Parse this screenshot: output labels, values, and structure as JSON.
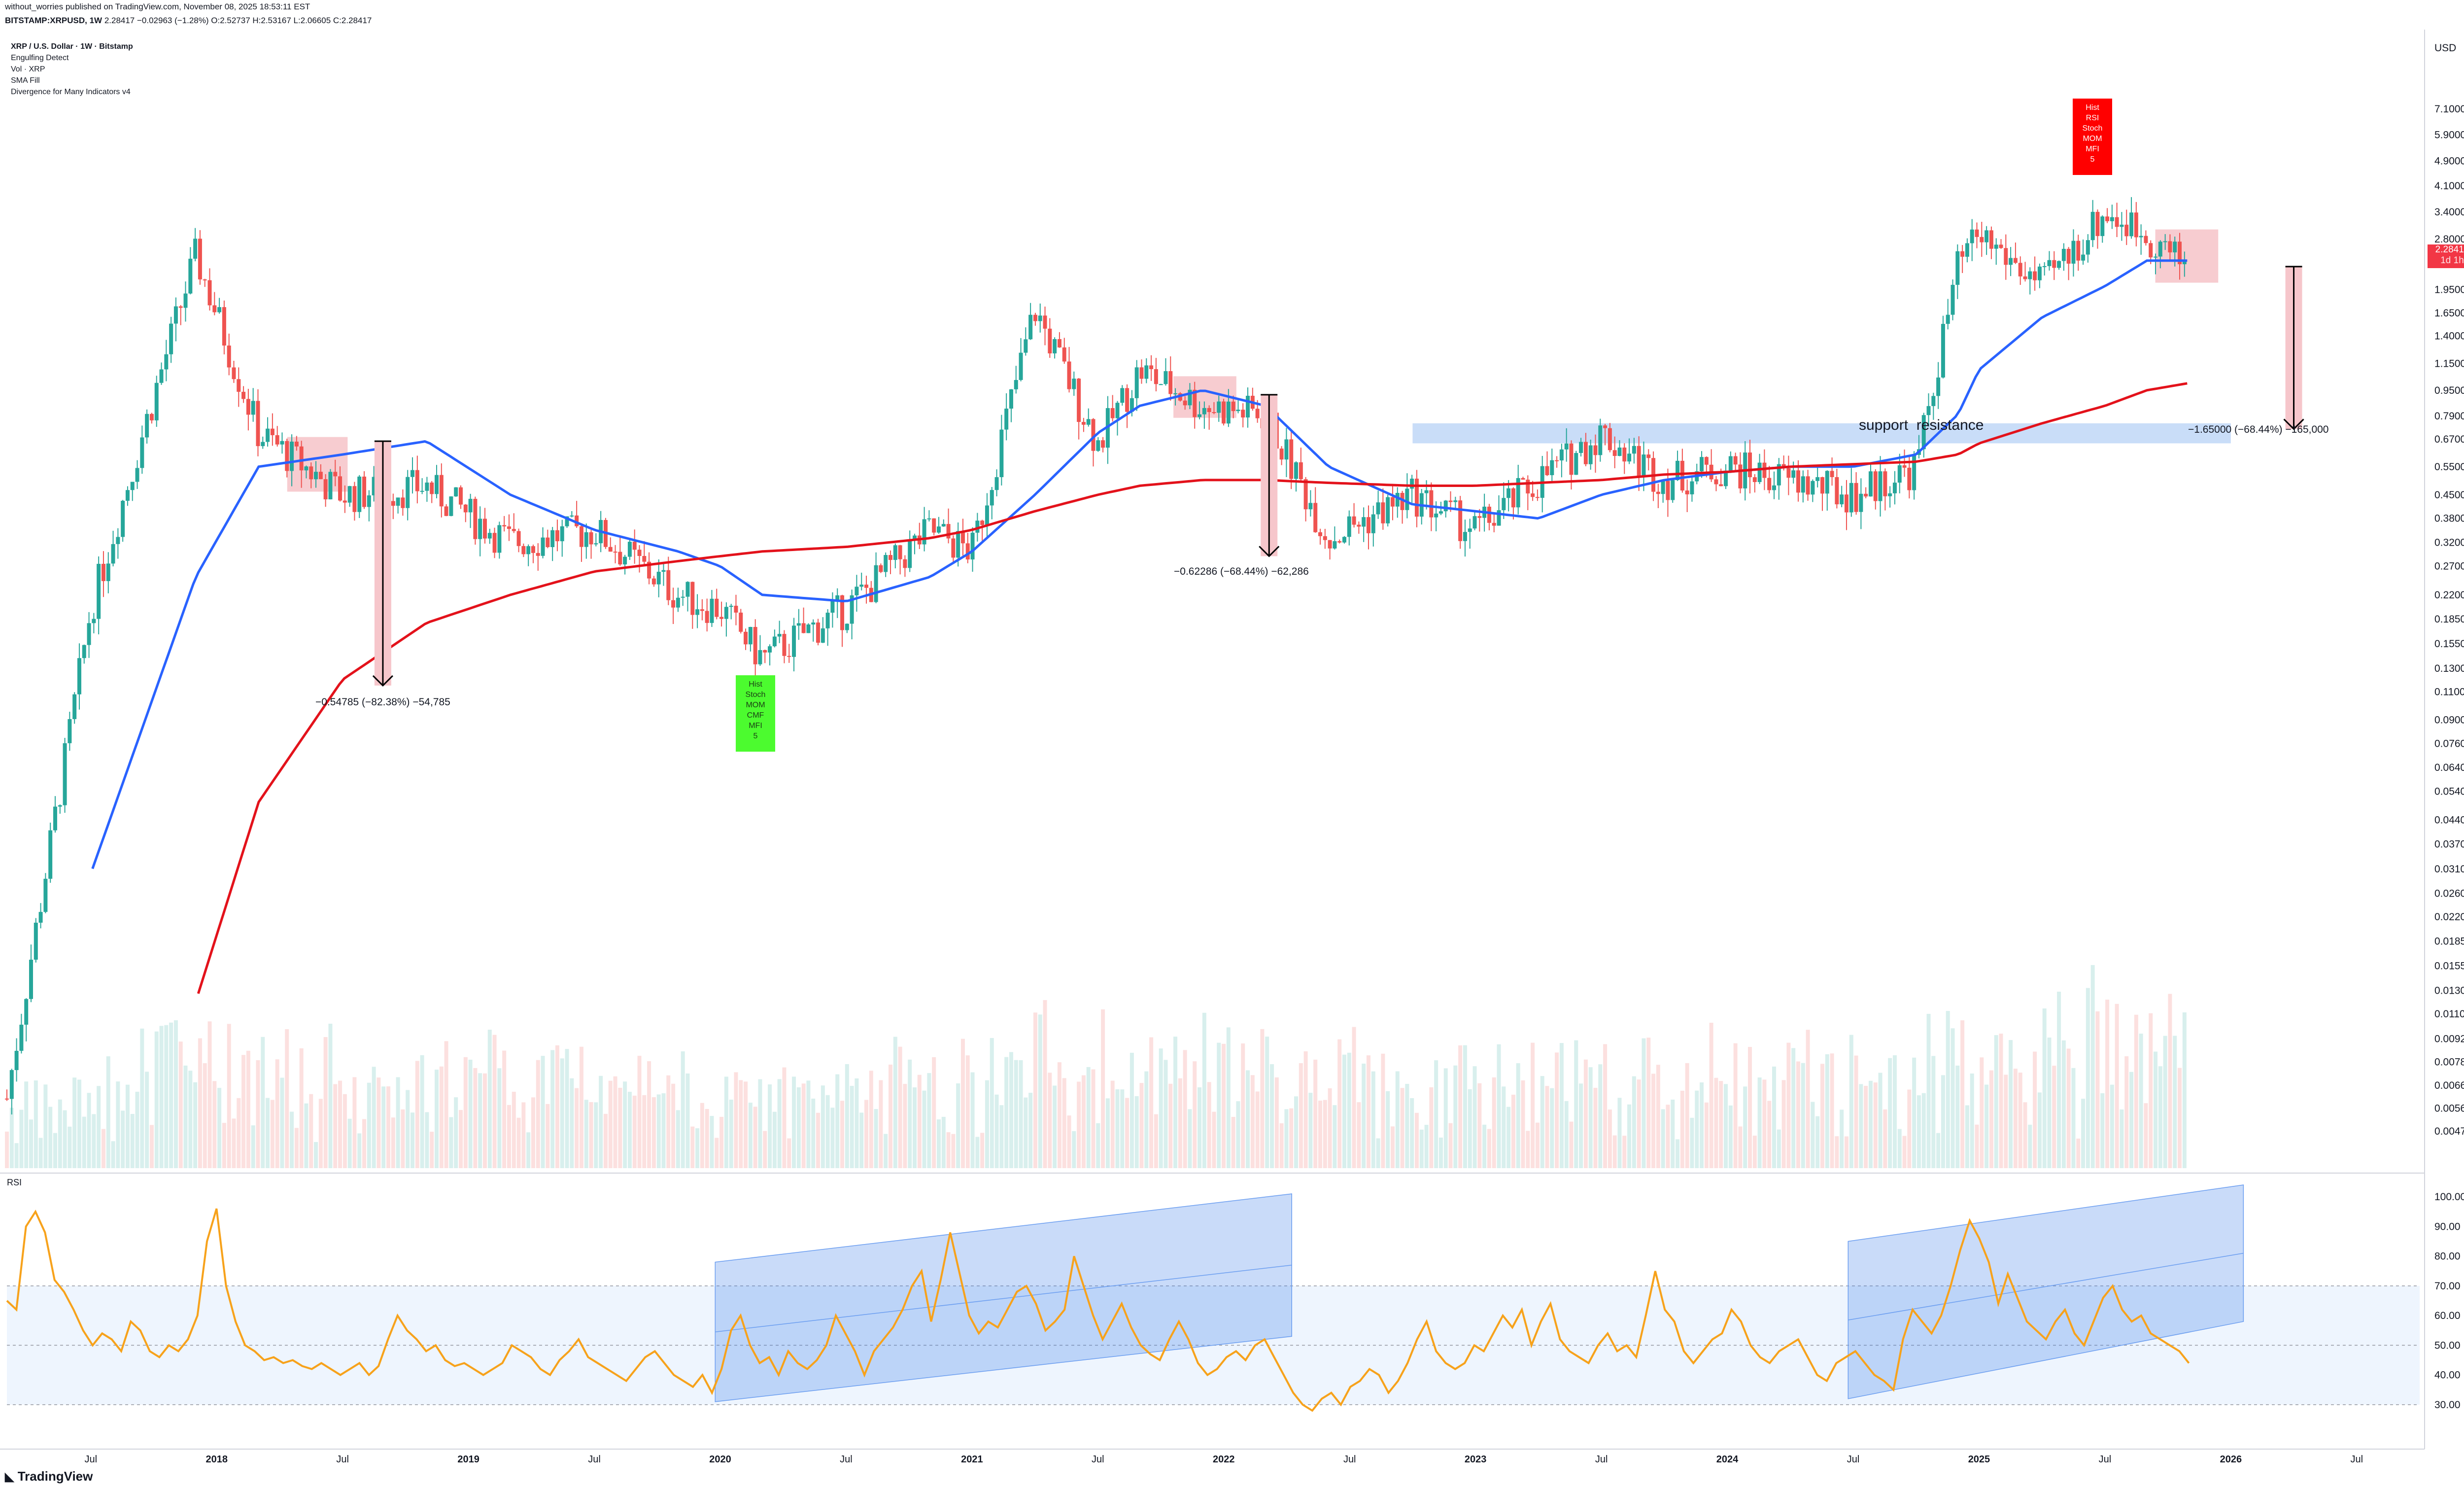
{
  "header": {
    "publish_line": "without_worries published on TradingView.com, November 08, 2025 18:53:11 EST",
    "symbol_line": "BITSTAMP:XRPUSD, 1W",
    "ohlc": "2.28417 −0.02963 (−1.28%) O:2.52737 H:2.53167 L:2.06605 C:2.28417"
  },
  "legend": {
    "title": "XRP / U.S. Dollar · 1W · Bitstamp",
    "indicators": [
      "Engulfing Detect",
      "Vol · XRP",
      "SMA Fill",
      "Divergence for Many Indicators v4"
    ]
  },
  "price_axis": {
    "unit": "USD",
    "ticks": [
      "7.10000",
      "5.90000",
      "4.90000",
      "4.10000",
      "3.40000",
      "2.80000",
      "1.95000",
      "1.65000",
      "1.40000",
      "1.15000",
      "0.95000",
      "0.79000",
      "0.67000",
      "0.55000",
      "0.45000",
      "0.38000",
      "0.32000",
      "0.27000",
      "0.22000",
      "0.18500",
      "0.15500",
      "0.13000",
      "0.11000",
      "0.09000",
      "0.07600",
      "0.06400",
      "0.05400",
      "0.04400",
      "0.03700",
      "0.03100",
      "0.02600",
      "0.02200",
      "0.01850",
      "0.01550",
      "0.01300",
      "0.01100",
      "0.00920",
      "0.00780",
      "0.00660",
      "0.00560",
      "0.00475"
    ],
    "current_price": "2.28417",
    "current_countdown": "1d 1h"
  },
  "time_axis": {
    "labels": [
      {
        "text": "Jul",
        "year": false
      },
      {
        "text": "2018",
        "year": true
      },
      {
        "text": "Jul",
        "year": false
      },
      {
        "text": "2019",
        "year": true
      },
      {
        "text": "Jul",
        "year": false
      },
      {
        "text": "2020",
        "year": true
      },
      {
        "text": "Jul",
        "year": false
      },
      {
        "text": "2021",
        "year": true
      },
      {
        "text": "Jul",
        "year": false
      },
      {
        "text": "2022",
        "year": true
      },
      {
        "text": "Jul",
        "year": false
      },
      {
        "text": "2023",
        "year": true
      },
      {
        "text": "Jul",
        "year": false
      },
      {
        "text": "2024",
        "year": true
      },
      {
        "text": "Jul",
        "year": false
      },
      {
        "text": "2025",
        "year": true
      },
      {
        "text": "Jul",
        "year": false
      },
      {
        "text": "2026",
        "year": true
      },
      {
        "text": "Jul",
        "year": false
      }
    ]
  },
  "rsi_panel": {
    "label": "RSI",
    "ticks": [
      "100.00",
      "90.00",
      "80.00",
      "70.00",
      "60.00",
      "50.00",
      "40.00",
      "30.00"
    ]
  },
  "annotations": {
    "drop1": "−0.54785 (−82.38%) −54,785",
    "drop2": "−0.62286 (−68.44%) −62,286",
    "drop3": "−1.65000 (−68.44%) −165,000",
    "support_resistance": "support  resistance",
    "bull_div": [
      "Hist",
      "Stoch",
      "MOM",
      "CMF",
      "MFI",
      "5"
    ],
    "bear_div": [
      "Hist",
      "RSI",
      "Stoch",
      "MOM",
      "MFI",
      "5"
    ]
  },
  "colors": {
    "bull_candle": "#26a69a",
    "bear_candle": "#ef5350",
    "sma_fast": "#2962ff",
    "sma_slow": "#e3121b",
    "rsi": "#f7a21b",
    "box_red": "#f6c6cb",
    "box_blue": "#bcd4f6",
    "bull_label": "#4cfb2f",
    "bear_label": "#ff0000"
  },
  "chart_data": {
    "type": "line",
    "title": "XRP / U.S. Dollar · 1W · Bitstamp",
    "y_scale": "log",
    "ylabel": "USD",
    "ylim": [
      0.0042,
      8.5
    ],
    "x": [
      "2017-03",
      "2017-07",
      "2017-12",
      "2018-03",
      "2018-07",
      "2018-11",
      "2019-03",
      "2019-07",
      "2019-11",
      "2020-01",
      "2020-03",
      "2020-07",
      "2020-11",
      "2021-01",
      "2021-04",
      "2021-07",
      "2021-09",
      "2021-12",
      "2022-03",
      "2022-06",
      "2022-10",
      "2023-01",
      "2023-04",
      "2023-07",
      "2023-10",
      "2024-01",
      "2024-04",
      "2024-07",
      "2024-10",
      "2024-12",
      "2025-01",
      "2025-04",
      "2025-07",
      "2025-09",
      "2025-11"
    ],
    "series": [
      {
        "values": [
          0.006,
          0.2,
          2.5,
          0.7,
          0.45,
          0.48,
          0.32,
          0.35,
          0.22,
          0.2,
          0.14,
          0.2,
          0.35,
          0.3,
          1.7,
          0.65,
          1.1,
          0.85,
          0.8,
          0.33,
          0.45,
          0.35,
          0.5,
          0.7,
          0.5,
          0.55,
          0.5,
          0.45,
          0.55,
          2.3,
          2.9,
          2.0,
          3.4,
          2.9,
          2.28
        ]
      },
      {
        "values": [
          null,
          0.03,
          0.25,
          0.55,
          0.6,
          0.66,
          0.45,
          0.35,
          0.3,
          0.27,
          0.22,
          0.21,
          0.25,
          0.3,
          0.45,
          0.7,
          0.85,
          0.95,
          0.85,
          0.55,
          0.42,
          0.4,
          0.38,
          0.45,
          0.5,
          0.53,
          0.55,
          0.55,
          0.6,
          0.8,
          1.1,
          1.6,
          2.0,
          2.4,
          2.4
        ]
      },
      {
        "values": [
          null,
          null,
          0.012,
          0.05,
          0.12,
          0.18,
          0.22,
          0.26,
          0.28,
          0.29,
          0.3,
          0.31,
          0.33,
          0.35,
          0.4,
          0.45,
          0.48,
          0.5,
          0.5,
          0.49,
          0.48,
          0.48,
          0.49,
          0.5,
          0.52,
          0.53,
          0.55,
          0.56,
          0.57,
          0.6,
          0.65,
          0.75,
          0.85,
          0.95,
          1.0
        ]
      }
    ]
  },
  "rsi_data": {
    "x_start": "2017-03",
    "ylim": [
      25,
      105
    ],
    "values": [
      65,
      62,
      90,
      95,
      88,
      72,
      68,
      62,
      55,
      50,
      54,
      52,
      48,
      58,
      55,
      48,
      46,
      50,
      48,
      52,
      60,
      85,
      96,
      70,
      58,
      50,
      48,
      45,
      46,
      44,
      45,
      43,
      42,
      44,
      42,
      40,
      42,
      44,
      40,
      43,
      52,
      60,
      55,
      52,
      48,
      50,
      45,
      43,
      44,
      42,
      40,
      42,
      44,
      50,
      48,
      46,
      42,
      40,
      45,
      48,
      52,
      46,
      44,
      42,
      40,
      38,
      42,
      46,
      48,
      44,
      40,
      38,
      36,
      40,
      34,
      42,
      55,
      60,
      50,
      44,
      46,
      40,
      48,
      44,
      42,
      45,
      50,
      60,
      54,
      48,
      40,
      48,
      52,
      56,
      62,
      70,
      75,
      58,
      72,
      88,
      74,
      60,
      54,
      58,
      56,
      62,
      68,
      70,
      64,
      55,
      58,
      62,
      80,
      70,
      60,
      52,
      58,
      64,
      56,
      50,
      47,
      45,
      52,
      58,
      52,
      44,
      40,
      42,
      46,
      48,
      45,
      50,
      52,
      46,
      40,
      34,
      30,
      28,
      32,
      34,
      30,
      36,
      38,
      42,
      40,
      34,
      38,
      44,
      52,
      58,
      48,
      44,
      42,
      44,
      50,
      48,
      54,
      60,
      56,
      62,
      50,
      58,
      64,
      52,
      48,
      46,
      44,
      50,
      54,
      48,
      50,
      46,
      60,
      75,
      62,
      58,
      48,
      44,
      48,
      52,
      54,
      62,
      58,
      50,
      46,
      44,
      48,
      50,
      52,
      46,
      40,
      38,
      44,
      46,
      48,
      44,
      40,
      38,
      35,
      52,
      62,
      58,
      54,
      60,
      70,
      82,
      92,
      86,
      78,
      64,
      74,
      66,
      58,
      55,
      52,
      58,
      62,
      54,
      50,
      58,
      66,
      70,
      62,
      58,
      60,
      54,
      52,
      50,
      48,
      44
    ]
  }
}
